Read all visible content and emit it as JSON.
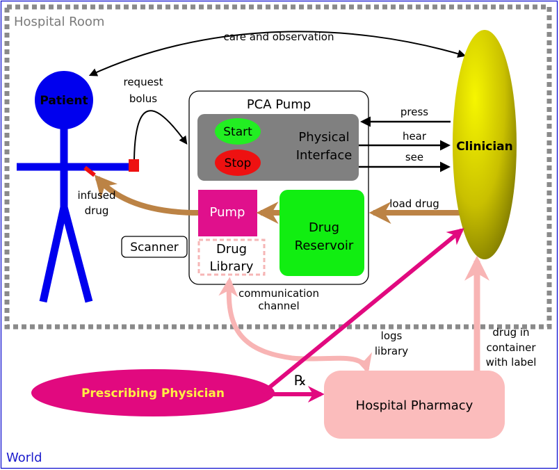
{
  "frame": {
    "world_label": "World",
    "room_label": "Hospital Room"
  },
  "patient": {
    "label": "Patient"
  },
  "clinician": {
    "label": "Clinician"
  },
  "pump_box": {
    "title": "PCA Pump",
    "physical_interface_line1": "Physical",
    "physical_interface_line2": "Interface",
    "start_label": "Start",
    "stop_label": "Stop",
    "pump_label": "Pump",
    "reservoir_line1": "Drug",
    "reservoir_line2": "Reservoir",
    "library_line1": "Drug",
    "library_line2": "Library"
  },
  "scanner": {
    "label": "Scanner"
  },
  "physician": {
    "label": "Prescribing Physician"
  },
  "pharmacy": {
    "label": "Hospital Pharmacy"
  },
  "edge_labels": {
    "care": "care and observation",
    "request_line1": "request",
    "request_line2": "bolus",
    "press": "press",
    "hear": "hear",
    "see": "see",
    "load_drug": "load drug",
    "infused_line1": "infused",
    "infused_line2": "drug",
    "comm_line1": "communication",
    "comm_line2": "channel",
    "logs_line1": "logs",
    "logs_line2": "library",
    "container_line1": "drug in",
    "container_line2": "container",
    "container_line3": "with label",
    "rx": "℞"
  },
  "colors": {
    "world_border": "#0000cc",
    "room_border": "#888888",
    "patient": "#0000ee",
    "clinician_light": "#f0f000",
    "clinician_dark": "#6e6a00",
    "interface_gray": "#808080",
    "start_green": "#22ee22",
    "stop_red": "#ee1111",
    "pump_magenta": "#e0108c",
    "reservoir_green": "#11ee11",
    "library_pink": "#f6b6b6",
    "pharmacy_pink": "#fbbcbc",
    "physician_magenta": "#e1097f",
    "physician_text": "#ffee44",
    "drug_brown": "#bc8345"
  }
}
